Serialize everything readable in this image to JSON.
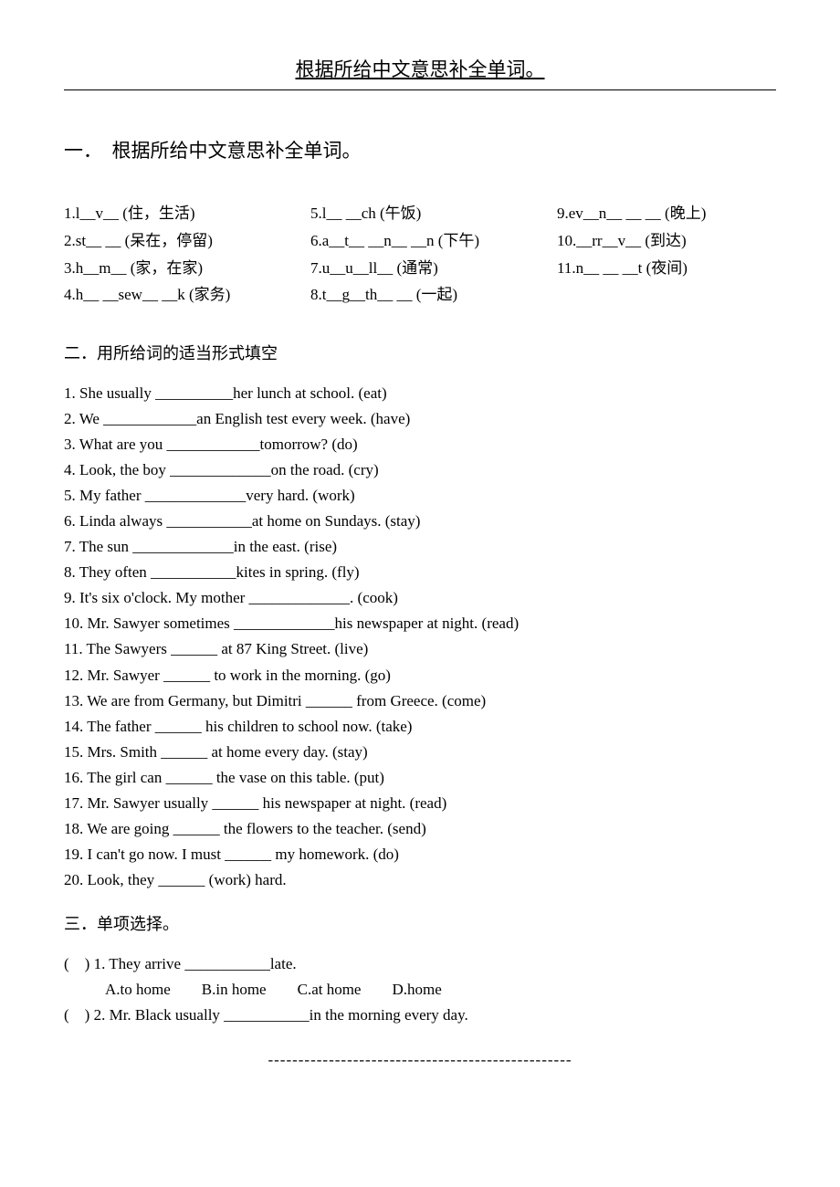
{
  "header": {
    "title": "根据所给中文意思补全单词。"
  },
  "section1": {
    "title": "一．　根据所给中文意思补全单词。",
    "col1": [
      "1.l__v__ (住，生活)",
      "2.st__ __ (呆在，停留)",
      "3.h__m__ (家，在家)",
      "4.h__ __sew__ __k (家务)"
    ],
    "col2": [
      "5.l__ __ch (午饭)",
      "6.a__t__ __n__ __n (下午)",
      "7.u__u__ll__ (通常)",
      "8.t__g__th__ __ (一起)"
    ],
    "col3": [
      "9.ev__n__ __ __ (晚上)",
      "10.__rr__v__ (到达)",
      "11.n__ __ __t (夜间)"
    ]
  },
  "section2": {
    "title": "二．用所给词的适当形式填空",
    "items": [
      "1. She usually __________her lunch at school. (eat)",
      "2. We ____________an English test every week. (have)",
      "3. What are you ____________tomorrow? (do)",
      "4. Look, the boy _____________on the road. (cry)",
      "5. My father _____________very hard. (work)",
      "6. Linda always ___________at home on Sundays. (stay)",
      "7. The sun _____________in the east. (rise)",
      "8. They often ___________kites in spring. (fly)",
      "9. It's six o'clock. My mother _____________. (cook)",
      "10. Mr. Sawyer sometimes _____________his newspaper at night. (read)",
      "11. The Sawyers ______ at 87 King Street. (live)",
      "12. Mr. Sawyer ______ to work in the morning. (go)",
      "13. We are from Germany, but Dimitri ______ from Greece. (come)",
      "14. The father ______ his children to school now. (take)",
      "15. Mrs. Smith ______ at home every day. (stay)",
      "16. The girl can ______ the vase on this table. (put)",
      "17. Mr. Sawyer usually ______ his newspaper at night. (read)",
      "18. We are going ______ the flowers to the teacher. (send)",
      "19. I can't go now. I must ______ my homework. (do)",
      "20. Look, they ______ (work) hard."
    ]
  },
  "section3": {
    "title": "三．单项选择。",
    "q1": "(　) 1. They arrive ___________late.",
    "q1_choices": "A.to home　　B.in home　　C.at home　　D.home",
    "q2": "(　) 2. Mr. Black usually ___________in the morning every day."
  },
  "footer": "--------------------------------------------------"
}
